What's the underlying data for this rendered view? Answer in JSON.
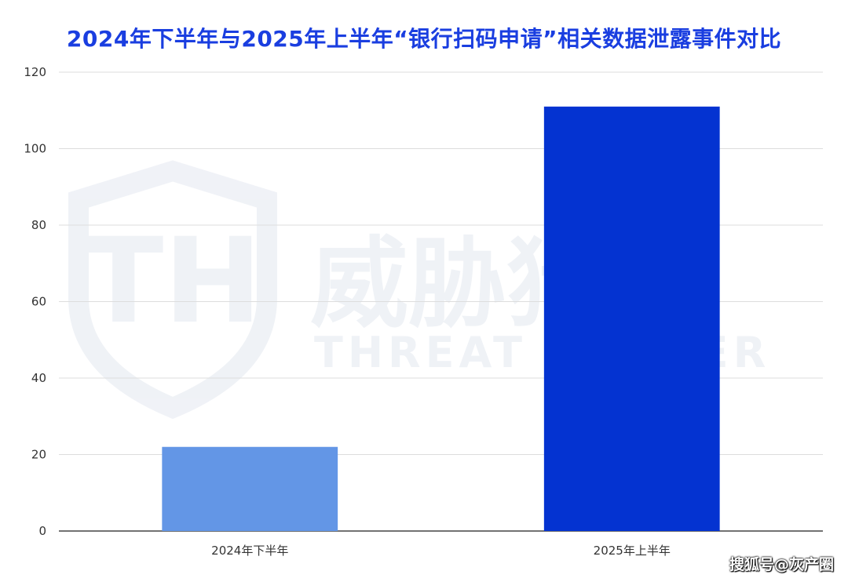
{
  "chart_data": {
    "type": "bar",
    "title": "2024年下半年与2025年上半年“银行扫码申请”相关数据泄露事件对比",
    "categories": [
      "2024年下半年",
      "2025年上半年"
    ],
    "values": [
      22,
      111
    ],
    "colors": [
      "#6396e6",
      "#0433d1"
    ],
    "ylim": [
      0,
      120
    ],
    "yticks": [
      0,
      20,
      40,
      60,
      80,
      100,
      120
    ],
    "xlabel": "",
    "ylabel": "",
    "grid": true
  },
  "watermark": {
    "cn": "威胁猎人",
    "en": "THREAT HUNTER"
  },
  "source_credit": "搜狐号@灰产圈"
}
